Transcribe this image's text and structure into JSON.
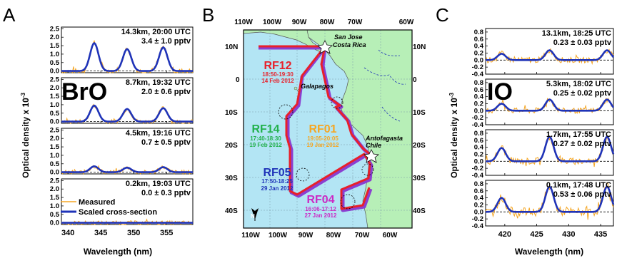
{
  "colors": {
    "measured": "#f5a623",
    "fit": "#1f33b8",
    "ocean": "#b3e5f4",
    "land": "#b7efb7",
    "track": "#e8202a",
    "track_shadow": "#8a3fd0",
    "rf12": "#e8202a",
    "rf14": "#22b14c",
    "rf01": "#f5a623",
    "rf05": "#1f33b8",
    "rf04": "#cc29c4"
  },
  "panel_letters": {
    "a": "A",
    "b": "B",
    "c": "C"
  },
  "species": {
    "bro": "BrO",
    "io": "IO"
  },
  "axis_labels": {
    "ylabel_left": "Optical density x 10",
    "ylabel_left_exp": "-3",
    "ylabel_right": "Optical density x 10",
    "ylabel_right_exp": "-3",
    "xlabel": "Wavelength (nm)"
  },
  "legend": {
    "measured": "Measured",
    "fit": "Scaled cross-section"
  },
  "map": {
    "lon_ticks": [
      "110W",
      "100W",
      "90W",
      "80W",
      "70W",
      "60W"
    ],
    "lat_ticks": [
      "10N",
      "0",
      "10S",
      "20S",
      "30S",
      "40S"
    ],
    "places": {
      "costa_rica_1": "San Jose",
      "costa_rica_2": "Costa Rica",
      "galapagos": "Galapagos",
      "chile_1": "Antofagasta",
      "chile_2": "Chile"
    },
    "flights": [
      {
        "id": "RF12",
        "time": "18:50-19:30",
        "date": "14 Feb 2012",
        "color_key": "rf12"
      },
      {
        "id": "RF14",
        "time": "17:40-18:30",
        "date": "19 Feb 2012",
        "color_key": "rf14"
      },
      {
        "id": "RF01",
        "time": "19:05-20:05",
        "date": "19 Jan 2012",
        "color_key": "rf01"
      },
      {
        "id": "RF05",
        "time": "17:50-18:25",
        "date": "29 Jan 2012",
        "color_key": "rf05"
      },
      {
        "id": "RF04",
        "time": "16:06-17:12",
        "date": "27 Jan 2012",
        "color_key": "rf04"
      }
    ]
  },
  "chart_data": [
    {
      "type": "line",
      "panel": "A",
      "species": "BrO",
      "xlabel": "Wavelength (nm)",
      "ylabel": "Optical density x 10^-3",
      "xlim": [
        339,
        359
      ],
      "x_ticks": [
        340,
        345,
        350,
        355
      ],
      "peaks": [
        344,
        349,
        354.5
      ],
      "subplots": [
        {
          "title": "14.3km, 20:00 UTC",
          "value": "3.4 ± 1.0 pptv",
          "ylim": [
            -0.1,
            2.6
          ],
          "y_ticks": [
            "0.0",
            "0.5",
            "1.0",
            "1.5",
            "2.0",
            "2.5"
          ],
          "peak_heights": [
            1.65,
            1.3,
            1.4
          ],
          "noise": 0.15
        },
        {
          "title": "8.7km, 19:32 UTC",
          "value": "2.0 ± 0.6 pptv",
          "ylim": [
            -0.1,
            2.6
          ],
          "y_ticks": [
            "0.0",
            "0.5",
            "1.0",
            "1.5",
            "2.0",
            "2.5"
          ],
          "peak_heights": [
            0.95,
            0.75,
            0.8
          ],
          "noise": 0.12
        },
        {
          "title": "4.5km, 19:16 UTC",
          "value": "0.7 ± 0.5 pptv",
          "ylim": [
            -0.1,
            2.6
          ],
          "y_ticks": [
            "0.0",
            "0.5",
            "1.0",
            "1.5",
            "2.0",
            "2.5"
          ],
          "peak_heights": [
            0.35,
            0.27,
            0.3
          ],
          "noise": 0.12
        },
        {
          "title": "0.2km, 19:03 UTC",
          "value": "0.0 ± 0.3 pptv",
          "ylim": [
            -0.1,
            2.6
          ],
          "y_ticks": [
            "0.0",
            "0.5",
            "1.0",
            "1.5",
            "2.0",
            "2.5"
          ],
          "peak_heights": [
            0.0,
            0.0,
            0.0
          ],
          "noise": 0.12
        }
      ]
    },
    {
      "type": "line",
      "panel": "C",
      "species": "IO",
      "xlabel": "Wavelength (nm)",
      "ylabel": "Optical density x 10^-3",
      "xlim": [
        417,
        437
      ],
      "x_ticks": [
        420,
        425,
        430,
        435
      ],
      "peaks": [
        419.5,
        427,
        436
      ],
      "subplots": [
        {
          "title": "13.1km, 18:25 UTC",
          "value": "0.23 ± 0.03 pptv",
          "ylim": [
            -0.4,
            0.9
          ],
          "y_ticks": [
            "-0.4",
            "-0.2",
            "0.0",
            "0.2",
            "0.4",
            "0.6",
            "0.8"
          ],
          "peak_heights": [
            0.18,
            0.28,
            0.28
          ],
          "noise": 0.08
        },
        {
          "title": "5.3km, 18:02 UTC",
          "value": "0.25 ± 0.02 pptv",
          "ylim": [
            -0.4,
            0.9
          ],
          "y_ticks": [
            "-0.4",
            "-0.2",
            "0.0",
            "0.2",
            "0.4",
            "0.6",
            "0.8"
          ],
          "peak_heights": [
            0.2,
            0.32,
            0.32
          ],
          "noise": 0.08
        },
        {
          "title": "1.7km, 17:55 UTC",
          "value": "0.27 ± 0.02 pptv",
          "ylim": [
            -0.4,
            0.9
          ],
          "y_ticks": [
            "-0.4",
            "-0.2",
            "0.0",
            "0.2",
            "0.4",
            "0.6",
            "0.8"
          ],
          "peak_heights": [
            0.38,
            0.7,
            0.7
          ],
          "noise": 0.1
        },
        {
          "title": "0.1km, 17:48 UTC",
          "value": "0.53 ± 0.06 pptv",
          "ylim": [
            -0.4,
            0.9
          ],
          "y_ticks": [
            "-0.4",
            "-0.2",
            "0.0",
            "0.2",
            "0.4",
            "0.6",
            "0.8"
          ],
          "peak_heights": [
            0.4,
            0.72,
            0.72
          ],
          "noise": 0.12
        }
      ]
    }
  ]
}
